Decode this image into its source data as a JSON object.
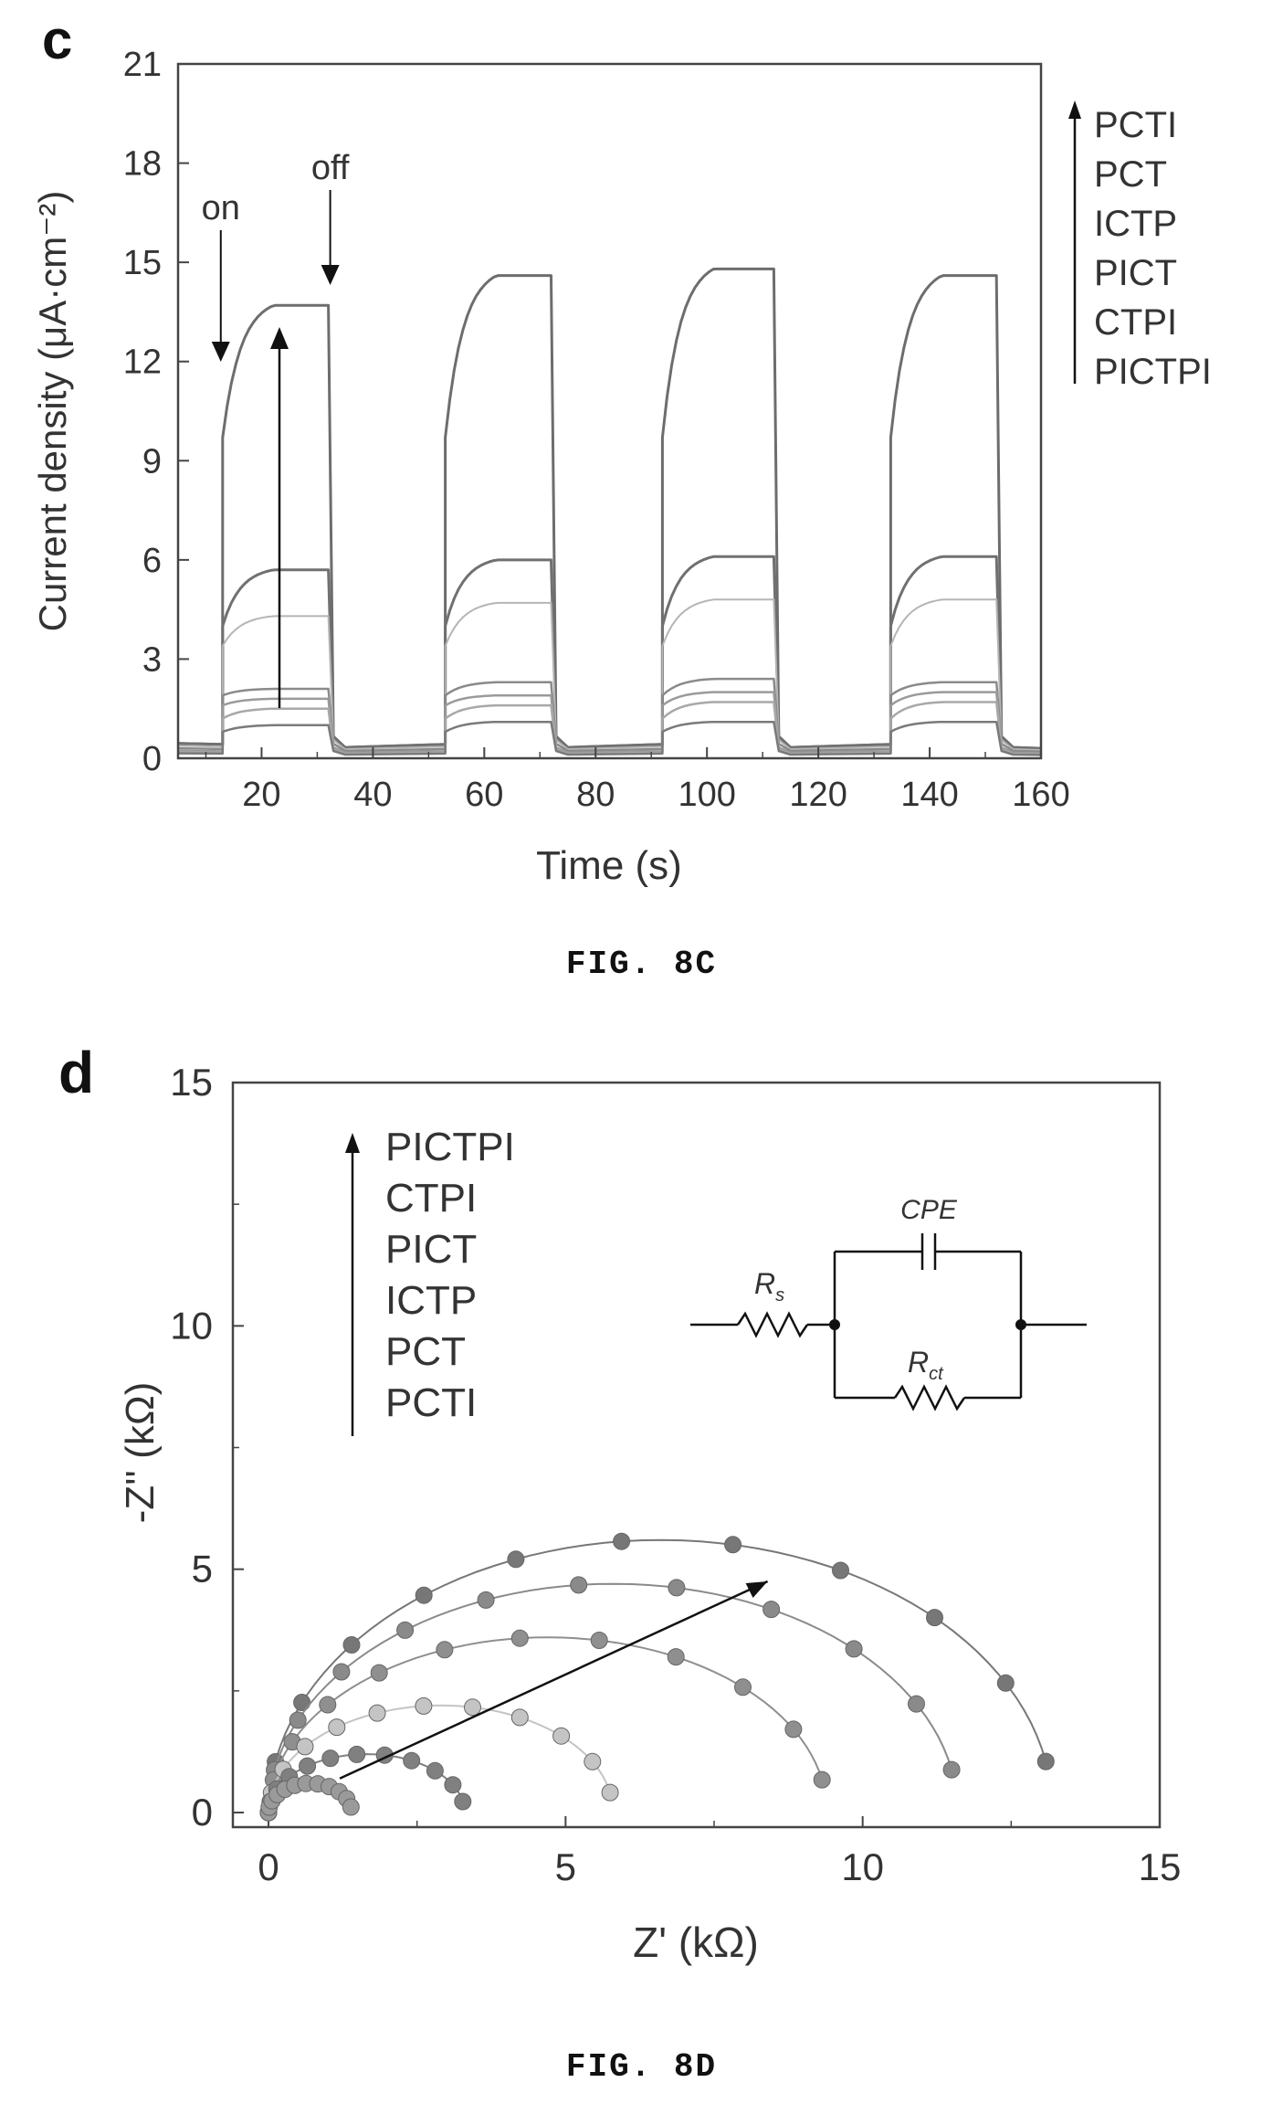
{
  "chart_data": [
    {
      "type": "line",
      "panel_label": "c",
      "caption": "FIG. 8C",
      "xlabel": "Time (s)",
      "ylabel": "Current density (μA·cm⁻²)",
      "xlim": [
        5,
        160
      ],
      "ylim": [
        0,
        21
      ],
      "xticks": [
        20,
        40,
        60,
        80,
        100,
        120,
        140,
        160
      ],
      "yticks": [
        0,
        3,
        6,
        9,
        12,
        15,
        18,
        21
      ],
      "grid": false,
      "legend": {
        "placement": "right",
        "entries": [
          "PCTI",
          "PCT",
          "ICTP",
          "PICT",
          "CTPI",
          "PICTPI"
        ],
        "direction": "arrow pointing up"
      },
      "annotations": [
        {
          "text": "on",
          "x": 13,
          "y": 13.2
        },
        {
          "text": "off",
          "x": 32,
          "y": 16.0
        }
      ],
      "light_on_intervals": [
        [
          13,
          32
        ],
        [
          53,
          72
        ],
        [
          92,
          112
        ],
        [
          133,
          152
        ]
      ],
      "series": [
        {
          "dark": 0.3,
          "on_start": 9.7,
          "on_end": [
            13.7,
            14.6,
            14.8,
            14.6
          ]
        },
        {
          "dark": 0.3,
          "on_start": 4.0,
          "on_end": [
            5.7,
            6.0,
            6.1,
            6.1
          ]
        },
        {
          "dark": 0.25,
          "on_start": 3.4,
          "on_end": [
            4.3,
            4.7,
            4.8,
            4.8
          ]
        },
        {
          "dark": 0.2,
          "on_start": 1.9,
          "on_end": [
            2.1,
            2.3,
            2.4,
            2.3
          ]
        },
        {
          "dark": 0.15,
          "on_start": 1.6,
          "on_end": [
            1.8,
            1.9,
            2.0,
            2.0
          ]
        },
        {
          "dark": 0.12,
          "on_start": 1.2,
          "on_end": [
            1.5,
            1.6,
            1.7,
            1.7
          ]
        },
        {
          "dark": 0.1,
          "on_start": 0.8,
          "on_end": [
            1.0,
            1.1,
            1.1,
            1.1
          ]
        }
      ]
    },
    {
      "type": "scatter",
      "panel_label": "d",
      "caption": "FIG. 8D",
      "xlabel": "Z' (kΩ)",
      "ylabel": "-Z'' (kΩ)",
      "xlim": [
        -0.6,
        15
      ],
      "ylim": [
        -0.3,
        15
      ],
      "xticks": [
        0,
        5,
        10,
        15
      ],
      "yticks": [
        0,
        5,
        10,
        15
      ],
      "grid": false,
      "legend": {
        "placement": "top-left",
        "entries": [
          "PICTPI",
          "CTPI",
          "PICT",
          "ICTP",
          "PCT",
          "PCTI"
        ],
        "direction": "arrow pointing up"
      },
      "inset_circuit": {
        "labels": {
          "rs": "R",
          "rs_sub": "s",
          "rct": "R",
          "rct_sub": "ct",
          "cpe": "CPE"
        }
      },
      "series": [
        {
          "Rct": 13.2,
          "zmax": 5.6
        },
        {
          "Rct": 11.6,
          "zmax": 4.7
        },
        {
          "Rct": 9.4,
          "zmax": 3.6
        },
        {
          "Rct": 5.8,
          "zmax": 2.2
        },
        {
          "Rct": 3.3,
          "zmax": 1.2
        },
        {
          "Rct": 1.4,
          "zmax": 0.6
        }
      ]
    }
  ]
}
